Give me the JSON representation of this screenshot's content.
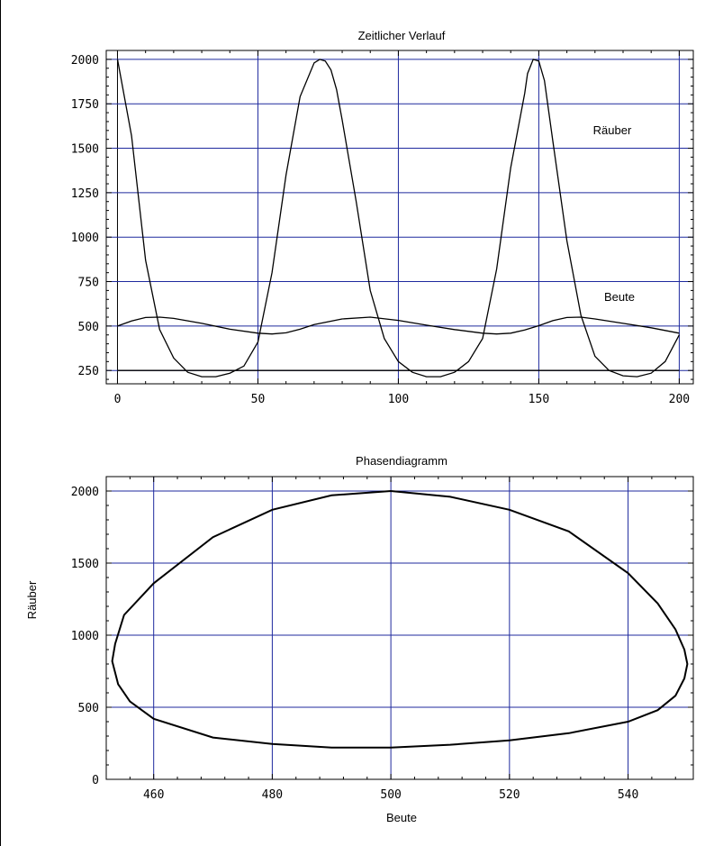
{
  "chart_data": [
    {
      "type": "line",
      "title": "Zeitlicher Verlauf",
      "xlabel": "",
      "ylabel": "",
      "xlim": [
        -4,
        205
      ],
      "ylim": [
        175,
        2050
      ],
      "xticks": [
        0,
        50,
        100,
        150,
        200
      ],
      "yticks": [
        250,
        500,
        750,
        1000,
        1250,
        1500,
        1750,
        2000
      ],
      "grid": true,
      "annotations": [
        "Räuber",
        "Beute"
      ],
      "series": [
        {
          "name": "Räuber",
          "x": [
            0,
            5,
            10,
            15,
            20,
            25,
            30,
            35,
            40,
            45,
            50,
            55,
            60,
            65,
            70,
            72,
            74,
            76,
            78,
            80,
            85,
            90,
            95,
            100,
            105,
            110,
            115,
            120,
            125,
            130,
            135,
            140,
            145,
            146,
            148,
            150,
            152,
            155,
            160,
            165,
            170,
            175,
            180,
            185,
            190,
            195,
            200
          ],
          "y": [
            2000,
            1570,
            870,
            480,
            320,
            240,
            215,
            215,
            235,
            275,
            410,
            800,
            1350,
            1790,
            1980,
            2000,
            1990,
            1940,
            1830,
            1660,
            1200,
            700,
            430,
            300,
            240,
            215,
            215,
            240,
            300,
            430,
            820,
            1390,
            1810,
            1920,
            2000,
            1990,
            1880,
            1540,
            980,
            560,
            330,
            250,
            220,
            215,
            235,
            300,
            450
          ]
        },
        {
          "name": "Beute",
          "x": [
            0,
            5,
            10,
            15,
            20,
            30,
            40,
            50,
            55,
            60,
            65,
            70,
            80,
            90,
            100,
            110,
            120,
            130,
            135,
            140,
            145,
            150,
            155,
            160,
            165,
            170,
            180,
            190,
            200
          ],
          "y": [
            500,
            528,
            548,
            550,
            543,
            515,
            482,
            460,
            455,
            462,
            482,
            508,
            540,
            550,
            532,
            505,
            480,
            460,
            455,
            460,
            478,
            502,
            530,
            548,
            550,
            540,
            515,
            490,
            460
          ]
        },
        {
          "name": "",
          "x": [
            0,
            200
          ],
          "y": [
            250,
            250
          ]
        }
      ]
    },
    {
      "type": "line",
      "title": "Phasendiagramm",
      "xlabel": "Beute",
      "ylabel": "Räuber",
      "xlim": [
        452,
        551
      ],
      "ylim": [
        0,
        2100
      ],
      "xticks": [
        460,
        480,
        500,
        520,
        540
      ],
      "yticks": [
        0,
        500,
        1000,
        1500,
        2000
      ],
      "grid": true,
      "series": [
        {
          "name": "",
          "x": [
            500,
            510,
            520,
            530,
            540,
            545,
            548,
            549.5,
            550,
            549.5,
            548,
            545,
            540,
            530,
            520,
            510,
            500,
            490,
            480,
            470,
            460,
            456,
            454,
            453.5,
            453,
            453.5,
            455,
            460,
            470,
            480,
            490,
            500
          ],
          "y": [
            2000,
            1960,
            1870,
            1720,
            1430,
            1220,
            1040,
            900,
            800,
            700,
            580,
            480,
            400,
            320,
            270,
            240,
            220,
            220,
            245,
            290,
            420,
            540,
            660,
            740,
            820,
            940,
            1140,
            1360,
            1680,
            1870,
            1970,
            2000
          ]
        }
      ]
    }
  ]
}
